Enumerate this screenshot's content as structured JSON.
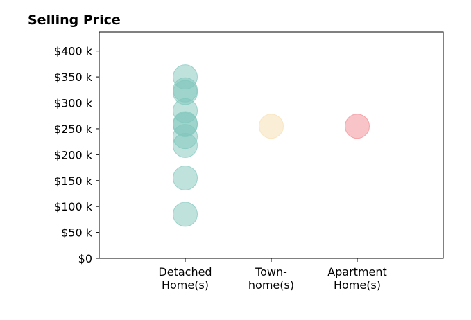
{
  "chart_data": {
    "type": "scatter",
    "title": "Selling Price",
    "xlabel": "",
    "ylabel": "",
    "categories": [
      [
        "Detached",
        "Home(s)"
      ],
      [
        "Town-",
        "home(s)"
      ],
      [
        "Apartment",
        "Home(s)"
      ]
    ],
    "yticks": [
      "$0",
      "$50 k",
      "$100 k",
      "$150 k",
      "$200 k",
      "$250 k",
      "$300 k",
      "$350 k",
      "$400 k"
    ],
    "ytick_values": [
      0,
      50000,
      100000,
      150000,
      200000,
      250000,
      300000,
      350000,
      400000
    ],
    "ylim": [
      0,
      437000
    ],
    "grid": false,
    "series": [
      {
        "category_index": 0,
        "color": "#7fc6bc",
        "values": [
          350000,
          325000,
          320000,
          285000,
          260000,
          258000,
          235000,
          218000,
          155000,
          85000
        ]
      },
      {
        "category_index": 1,
        "color": "#f8deae",
        "values": [
          255000
        ]
      },
      {
        "category_index": 2,
        "color": "#f28a92",
        "values": [
          255000
        ]
      }
    ]
  }
}
